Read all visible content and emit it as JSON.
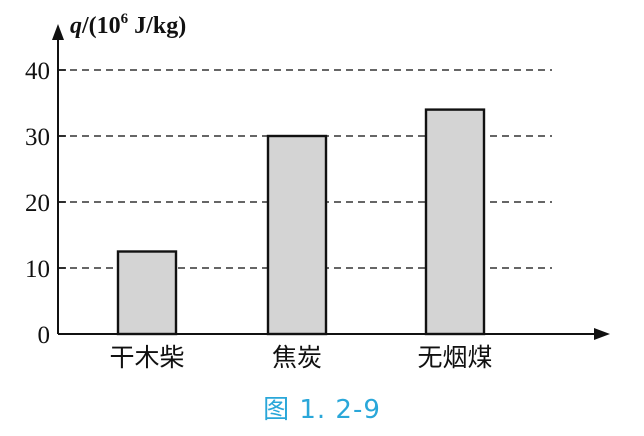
{
  "chart_data": {
    "type": "bar",
    "categories": [
      "干木柴",
      "焦炭",
      "无烟煤"
    ],
    "values": [
      12.5,
      30,
      34
    ],
    "ylabel": {
      "symbol": "q",
      "prefix": "/(10",
      "exponent": "6",
      "suffix": " J/kg)"
    },
    "ylim": [
      0,
      45
    ],
    "yticks": [
      "0",
      "10",
      "20",
      "30",
      "40"
    ],
    "grid": "dashed horizontal",
    "bar_fill": "#d4d4d4",
    "bar_stroke": "#111111"
  },
  "caption": "图 1. 2-9",
  "colors": {
    "caption": "#2aa7d9",
    "ink": "#111111"
  }
}
